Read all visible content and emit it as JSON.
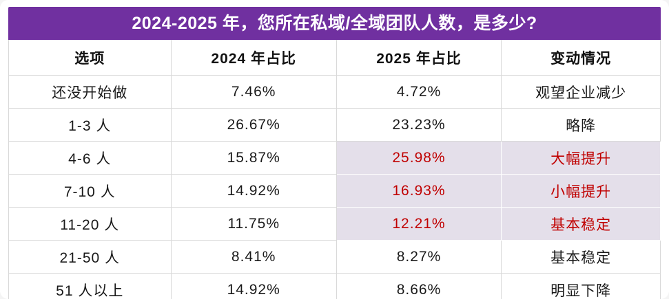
{
  "title": "2024-2025 年，您所在私域/全域团队人数，是多少?",
  "chart_data": {
    "type": "table",
    "title": "2024-2025 年，您所在私域/全域团队人数，是多少?",
    "columns": [
      "选项",
      "2024 年占比",
      "2025 年占比",
      "变动情况"
    ],
    "rows": [
      {
        "option": "还没开始做",
        "y2024": "7.46%",
        "y2025": "4.72%",
        "change": "观望企业减少",
        "highlight": false
      },
      {
        "option": "1-3 人",
        "y2024": "26.67%",
        "y2025": "23.23%",
        "change": "略降",
        "highlight": false
      },
      {
        "option": "4-6 人",
        "y2024": "15.87%",
        "y2025": "25.98%",
        "change": "大幅提升",
        "highlight": true
      },
      {
        "option": "7-10 人",
        "y2024": "14.92%",
        "y2025": "16.93%",
        "change": "小幅提升",
        "highlight": true
      },
      {
        "option": "11-20 人",
        "y2024": "11.75%",
        "y2025": "12.21%",
        "change": "基本稳定",
        "highlight": true
      },
      {
        "option": "21-50 人",
        "y2024": "8.41%",
        "y2025": "8.27%",
        "change": "基本稳定",
        "highlight": false
      },
      {
        "option": "51 人以上",
        "y2024": "14.92%",
        "y2025": "8.66%",
        "change": "明显下降",
        "highlight": false
      }
    ]
  },
  "colors": {
    "title_bg": "#7030A0",
    "title_text": "#FFFFFF",
    "highlight_bg": "#E4DFEA",
    "highlight_text": "#C00000",
    "grid_line": "#D9D9D9",
    "body_text": "#1A1A1A"
  }
}
